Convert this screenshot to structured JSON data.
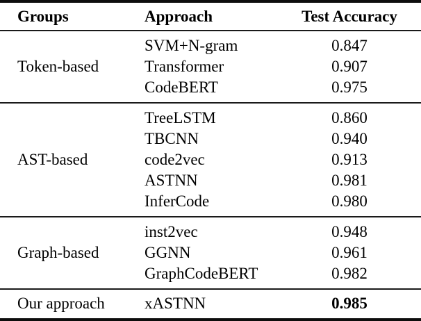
{
  "page": {
    "background_color": "#ffffff",
    "text_color": "#000000",
    "rule_color": "#0d0d0d"
  },
  "table": {
    "columns": {
      "groups": "Groups",
      "approach": "Approach",
      "accuracy": "Test Accuracy"
    },
    "groups": [
      {
        "name": "Token-based",
        "rows": [
          {
            "approach": "SVM+N-gram",
            "accuracy": "0.847"
          },
          {
            "approach": "Transformer",
            "accuracy": "0.907"
          },
          {
            "approach": "CodeBERT",
            "accuracy": "0.975"
          }
        ]
      },
      {
        "name": "AST-based",
        "rows": [
          {
            "approach": "TreeLSTM",
            "accuracy": "0.860"
          },
          {
            "approach": "TBCNN",
            "accuracy": "0.940"
          },
          {
            "approach": "code2vec",
            "accuracy": "0.913"
          },
          {
            "approach": "ASTNN",
            "accuracy": "0.981"
          },
          {
            "approach": "InferCode",
            "accuracy": "0.980"
          }
        ]
      },
      {
        "name": "Graph-based",
        "rows": [
          {
            "approach": "inst2vec",
            "accuracy": "0.948"
          },
          {
            "approach": "GGNN",
            "accuracy": "0.961"
          },
          {
            "approach": "GraphCodeBERT",
            "accuracy": "0.982"
          }
        ]
      },
      {
        "name": "Our approach",
        "rows": [
          {
            "approach": "xASTNN",
            "accuracy": "0.985"
          }
        ]
      }
    ]
  }
}
